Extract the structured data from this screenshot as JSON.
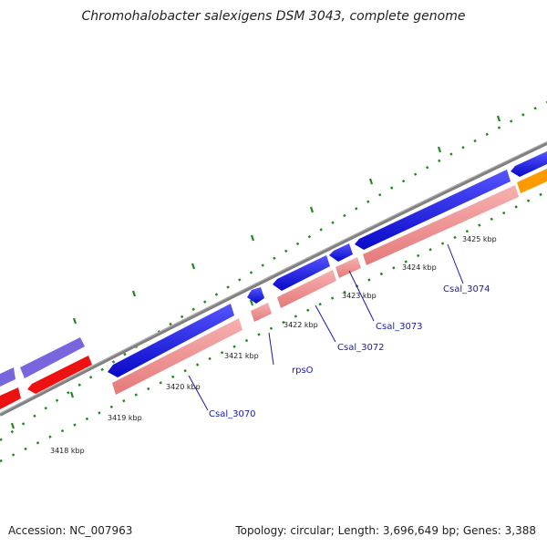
{
  "title": "Chromohalobacter salexigens DSM 3043, complete genome",
  "footer": {
    "accession": "Accession: NC_007963",
    "summary": "Topology: circular; Length: 3,696,649 bp; Genes: 3,388"
  },
  "colors": {
    "backbone": "#808080",
    "cds_forward": "#1010e6",
    "cds_forward_light": "#7766dd",
    "cds_reverse": "#ee1111",
    "gene_pink": "#f08a8a",
    "orange": "#ff9900",
    "tick": "#228822",
    "label_blue": "#1a1aaa"
  },
  "ticks": [
    {
      "label": "3418 kbp"
    },
    {
      "label": "3419 kbp"
    },
    {
      "label": "3420 kbp"
    },
    {
      "label": "3421 kbp"
    },
    {
      "label": "3422 kbp"
    },
    {
      "label": "3423 kbp"
    },
    {
      "label": "3424 kbp"
    },
    {
      "label": "3425 kbp"
    }
  ],
  "genes": [
    {
      "label": "Csal_3070"
    },
    {
      "label": "rpsO"
    },
    {
      "label": "Csal_3072"
    },
    {
      "label": "Csal_3073"
    },
    {
      "label": "Csal_3074"
    }
  ]
}
